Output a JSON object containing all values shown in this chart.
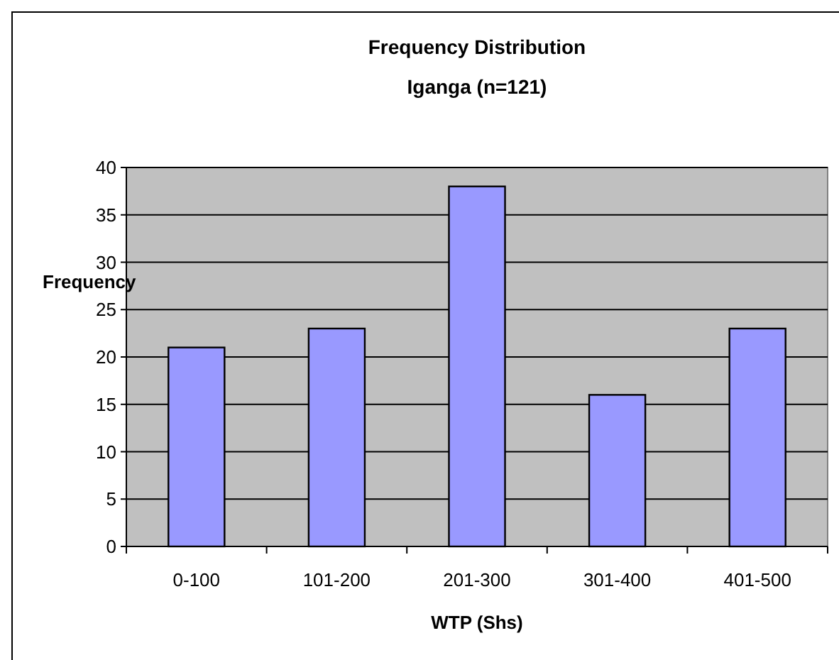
{
  "chart_data": {
    "type": "bar",
    "title": "Frequency Distribution",
    "subtitle": "Iganga (n=121)",
    "xlabel": "WTP (Shs)",
    "ylabel": "Frequency",
    "categories": [
      "0-100",
      "101-200",
      "201-300",
      "301-400",
      "401-500"
    ],
    "values": [
      21,
      23,
      38,
      16,
      23
    ],
    "color": "#9999ff",
    "ylim": [
      0,
      40
    ],
    "yticks": [
      0,
      5,
      10,
      15,
      20,
      25,
      30,
      35,
      40
    ],
    "grid": "y"
  }
}
